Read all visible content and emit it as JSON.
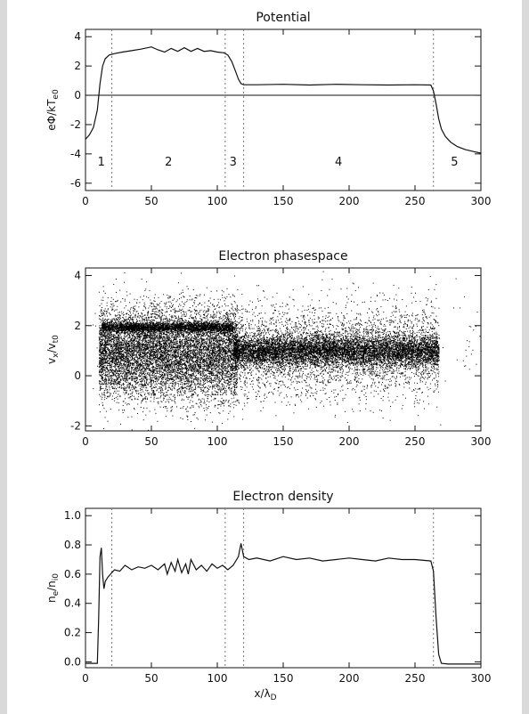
{
  "chart_data": [
    {
      "type": "line",
      "title": "Potential",
      "ylabel": "eΦ/kT",
      "ylabel_sub": "e0",
      "xlim": [
        0,
        300
      ],
      "ylim": [
        -6.5,
        4.5
      ],
      "xticks": [
        0,
        50,
        100,
        150,
        200,
        250,
        300
      ],
      "yticks": [
        -6,
        -4,
        -2,
        0,
        2,
        4
      ],
      "zero_line": true,
      "dividers": [
        20,
        106,
        120,
        264
      ],
      "regions": [
        {
          "label": "1",
          "x": 12
        },
        {
          "label": "2",
          "x": 63
        },
        {
          "label": "3",
          "x": 112
        },
        {
          "label": "4",
          "x": 192
        },
        {
          "label": "5",
          "x": 280
        }
      ],
      "region_label_y": -4.8,
      "series": [
        {
          "x": [
            0,
            3,
            6,
            9,
            11,
            13,
            15,
            18,
            22,
            28,
            35,
            42,
            50,
            55,
            60,
            65,
            70,
            75,
            80,
            85,
            90,
            95,
            100,
            105,
            108,
            111,
            114,
            116,
            118,
            120,
            130,
            150,
            170,
            190,
            210,
            230,
            250,
            262,
            264,
            266,
            268,
            270,
            273,
            277,
            282,
            288,
            295,
            300
          ],
          "y": [
            -3.0,
            -2.7,
            -2.2,
            -1.0,
            0.8,
            2.0,
            2.5,
            2.75,
            2.85,
            2.95,
            3.05,
            3.15,
            3.3,
            3.1,
            2.95,
            3.2,
            3.0,
            3.25,
            3.0,
            3.2,
            3.0,
            3.05,
            2.95,
            2.9,
            2.75,
            2.3,
            1.6,
            1.1,
            0.8,
            0.72,
            0.72,
            0.75,
            0.7,
            0.75,
            0.72,
            0.7,
            0.72,
            0.7,
            0.3,
            -0.6,
            -1.6,
            -2.3,
            -2.8,
            -3.2,
            -3.5,
            -3.7,
            -3.85,
            -3.95
          ]
        }
      ]
    },
    {
      "type": "scatter",
      "title": "Electron phasespace",
      "ylabel": "v",
      "ylabel_sub_x": "x",
      "ylabel_slash": "/v",
      "ylabel_sub_t": "t0",
      "xlim": [
        0,
        300
      ],
      "ylim": [
        -2.2,
        4.3
      ],
      "xticks": [
        0,
        50,
        100,
        150,
        200,
        250,
        300
      ],
      "yticks": [
        -2,
        0,
        2,
        4
      ],
      "point_color": "#000000",
      "populations": [
        {
          "x_range": [
            10,
            115
          ],
          "mean_v": 0.9,
          "spread_v": 0.9,
          "count": 9000
        },
        {
          "x_range": [
            12,
            112
          ],
          "mean_v": 1.95,
          "spread_v": 0.1,
          "count": 2600
        },
        {
          "x_range": [
            112,
            268
          ],
          "mean_v": 1.0,
          "spread_v": 0.3,
          "count": 7000
        },
        {
          "x_range": [
            112,
            268
          ],
          "mean_v": 1.0,
          "spread_v": 0.9,
          "count": 3500
        },
        {
          "x_range": [
            0,
            300
          ],
          "mean_v": 1.2,
          "spread_v": 1.3,
          "count": 260
        }
      ]
    },
    {
      "type": "line",
      "title": "Electron density",
      "ylabel": "n",
      "ylabel_sub_e": "e",
      "ylabel_slash": "/n",
      "ylabel_sub_i": "i0",
      "xlabel": "x/λ",
      "xlabel_sub": "D",
      "xlim": [
        0,
        300
      ],
      "ylim": [
        -0.04,
        1.05
      ],
      "xticks": [
        0,
        50,
        100,
        150,
        200,
        250,
        300
      ],
      "yticks": [
        0.0,
        0.2,
        0.4,
        0.6,
        0.8,
        1.0
      ],
      "yticklabels": [
        "0.0",
        "0.2",
        "0.4",
        "0.6",
        "0.8",
        "1.0"
      ],
      "dividers": [
        20,
        106,
        120,
        264
      ],
      "series": [
        {
          "x": [
            0,
            9,
            10,
            11,
            12,
            13,
            14,
            15,
            17,
            19,
            22,
            26,
            30,
            35,
            40,
            45,
            50,
            55,
            60,
            62,
            65,
            68,
            70,
            73,
            76,
            78,
            80,
            84,
            88,
            92,
            96,
            100,
            104,
            108,
            112,
            116,
            118,
            120,
            124,
            130,
            140,
            150,
            160,
            170,
            180,
            190,
            200,
            210,
            220,
            230,
            240,
            250,
            262,
            264,
            266,
            268,
            270,
            275,
            285,
            300
          ],
          "y": [
            -0.01,
            -0.01,
            0.3,
            0.72,
            0.78,
            0.6,
            0.5,
            0.55,
            0.58,
            0.6,
            0.63,
            0.62,
            0.66,
            0.63,
            0.65,
            0.64,
            0.66,
            0.63,
            0.67,
            0.6,
            0.68,
            0.62,
            0.7,
            0.61,
            0.67,
            0.6,
            0.7,
            0.63,
            0.66,
            0.62,
            0.67,
            0.64,
            0.66,
            0.63,
            0.66,
            0.72,
            0.81,
            0.72,
            0.7,
            0.71,
            0.69,
            0.72,
            0.7,
            0.71,
            0.69,
            0.7,
            0.71,
            0.7,
            0.69,
            0.71,
            0.7,
            0.7,
            0.69,
            0.62,
            0.3,
            0.05,
            -0.01,
            -0.015,
            -0.015,
            -0.015
          ]
        }
      ]
    }
  ]
}
